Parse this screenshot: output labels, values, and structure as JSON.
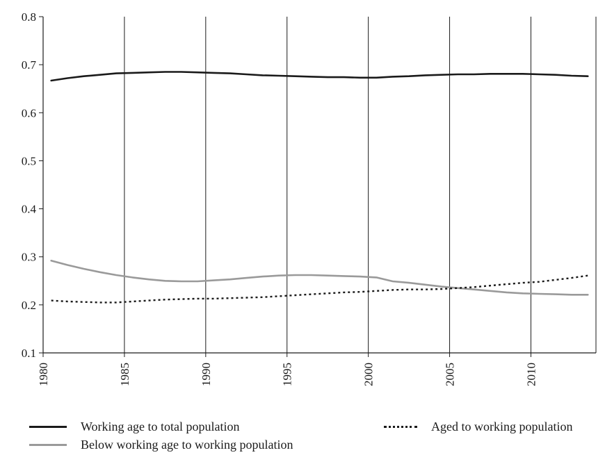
{
  "chart_data": {
    "type": "line",
    "title": "",
    "xlabel": "",
    "ylabel": "",
    "xlim": [
      1980,
      2014
    ],
    "ylim": [
      0.1,
      0.8
    ],
    "x_ticks": [
      "1980",
      "1985",
      "1990",
      "1995",
      "2000",
      "2005",
      "2010"
    ],
    "y_ticks": [
      "0.1",
      "0.2",
      "0.3",
      "0.4",
      "0.5",
      "0.6",
      "0.7",
      "0.8"
    ],
    "grid": "vertical",
    "legend_position": "bottom",
    "x": [
      1980.5,
      1981.5,
      1982.5,
      1983.5,
      1984.5,
      1985.5,
      1986.5,
      1987.5,
      1988.5,
      1989.5,
      1990.5,
      1991.5,
      1992.5,
      1993.5,
      1994.5,
      1995.5,
      1996.5,
      1997.5,
      1998.5,
      1999.5,
      2000.5,
      2001.5,
      2002.5,
      2003.5,
      2004.5,
      2005.5,
      2006.5,
      2007.5,
      2008.5,
      2009.5,
      2010.5,
      2011.5,
      2012.5,
      2013.5
    ],
    "series": [
      {
        "name": "Working age to total population",
        "color": "#1a1a1a",
        "style": "solid",
        "values": [
          0.667,
          0.672,
          0.676,
          0.679,
          0.682,
          0.683,
          0.684,
          0.685,
          0.685,
          0.684,
          0.683,
          0.682,
          0.68,
          0.678,
          0.677,
          0.676,
          0.675,
          0.674,
          0.674,
          0.673,
          0.673,
          0.675,
          0.676,
          0.678,
          0.679,
          0.68,
          0.68,
          0.681,
          0.681,
          0.681,
          0.68,
          0.679,
          0.677,
          0.676
        ]
      },
      {
        "name": "Below working age to working population",
        "color": "#9a9a9a",
        "style": "solid",
        "values": [
          0.292,
          0.283,
          0.275,
          0.268,
          0.262,
          0.257,
          0.253,
          0.25,
          0.249,
          0.249,
          0.251,
          0.253,
          0.256,
          0.259,
          0.261,
          0.262,
          0.262,
          0.261,
          0.26,
          0.259,
          0.257,
          0.249,
          0.246,
          0.242,
          0.238,
          0.235,
          0.232,
          0.229,
          0.226,
          0.224,
          0.223,
          0.222,
          0.221,
          0.221
        ]
      },
      {
        "name": "Aged to working population",
        "color": "#1a1a1a",
        "style": "dotted",
        "values": [
          0.209,
          0.207,
          0.206,
          0.205,
          0.205,
          0.207,
          0.209,
          0.211,
          0.212,
          0.213,
          0.213,
          0.214,
          0.215,
          0.216,
          0.218,
          0.22,
          0.222,
          0.224,
          0.226,
          0.227,
          0.229,
          0.231,
          0.232,
          0.232,
          0.233,
          0.235,
          0.237,
          0.24,
          0.243,
          0.246,
          0.248,
          0.252,
          0.256,
          0.261
        ]
      }
    ]
  },
  "legend": {
    "item1": "Working age to total population",
    "item2": "Aged to working population",
    "item3": "Below working age to working population"
  }
}
